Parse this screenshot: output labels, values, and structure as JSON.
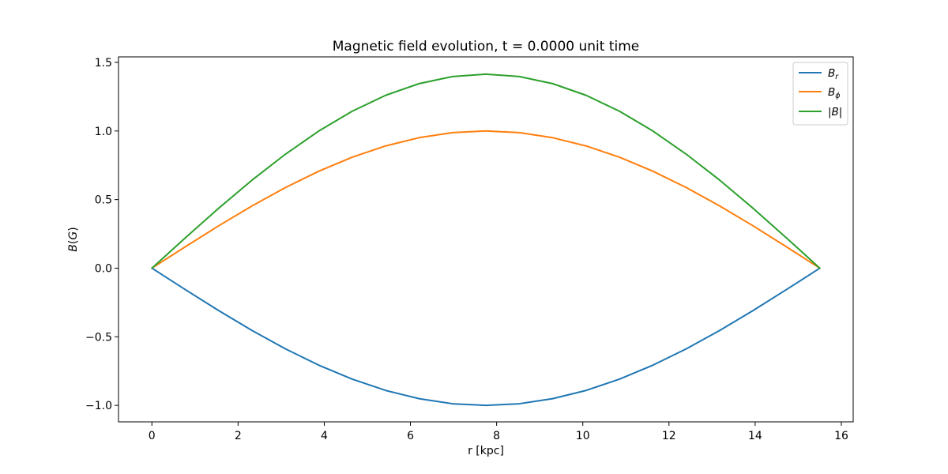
{
  "chart_data": {
    "type": "line",
    "title": "Magnetic field evolution, t = 0.0000 unit time",
    "xlabel": "r [kpc]",
    "ylabel": "B(G)",
    "xlim": [
      -0.775,
      16.275
    ],
    "ylim": [
      -1.12,
      1.54
    ],
    "x_ticks": [
      0,
      2,
      4,
      6,
      8,
      10,
      12,
      14,
      16
    ],
    "x_tick_labels": [
      "0",
      "2",
      "4",
      "6",
      "8",
      "10",
      "12",
      "14",
      "16"
    ],
    "y_ticks": [
      -1.0,
      -0.5,
      0.0,
      0.5,
      1.0,
      1.5
    ],
    "y_tick_labels": [
      "−1.0",
      "−0.5",
      "0.0",
      "0.5",
      "1.0",
      "1.5"
    ],
    "grid": false,
    "legend_position": "top-right",
    "x": [
      0.0,
      0.775,
      1.55,
      2.325,
      3.1,
      3.875,
      4.65,
      5.425,
      6.2,
      6.975,
      7.75,
      8.525,
      9.3,
      10.075,
      10.85,
      11.625,
      12.4,
      13.175,
      13.95,
      14.725,
      15.5
    ],
    "series": [
      {
        "name": "B_r",
        "color": "#1f77b4",
        "values": [
          0.0,
          -0.156,
          -0.309,
          -0.454,
          -0.588,
          -0.707,
          -0.809,
          -0.891,
          -0.951,
          -0.988,
          -1.0,
          -0.988,
          -0.951,
          -0.891,
          -0.809,
          -0.707,
          -0.588,
          -0.454,
          -0.309,
          -0.156,
          0.0
        ]
      },
      {
        "name": "B_ϕ",
        "color": "#ff7f0e",
        "values": [
          0.0,
          0.156,
          0.309,
          0.454,
          0.588,
          0.707,
          0.809,
          0.891,
          0.951,
          0.988,
          1.0,
          0.988,
          0.951,
          0.891,
          0.809,
          0.707,
          0.588,
          0.454,
          0.309,
          0.156,
          0.0
        ]
      },
      {
        "name": "|B|",
        "color": "#2ca02c",
        "values": [
          0.0,
          0.221,
          0.437,
          0.642,
          0.831,
          1.0,
          1.144,
          1.26,
          1.345,
          1.397,
          1.414,
          1.397,
          1.345,
          1.26,
          1.144,
          1.0,
          0.831,
          0.642,
          0.437,
          0.221,
          0.0
        ]
      }
    ],
    "legend": {
      "br": {
        "base": "B",
        "sub": "r"
      },
      "bphi": {
        "base": "B",
        "sub": "ϕ"
      },
      "babs": {
        "base": "|B|"
      }
    }
  }
}
